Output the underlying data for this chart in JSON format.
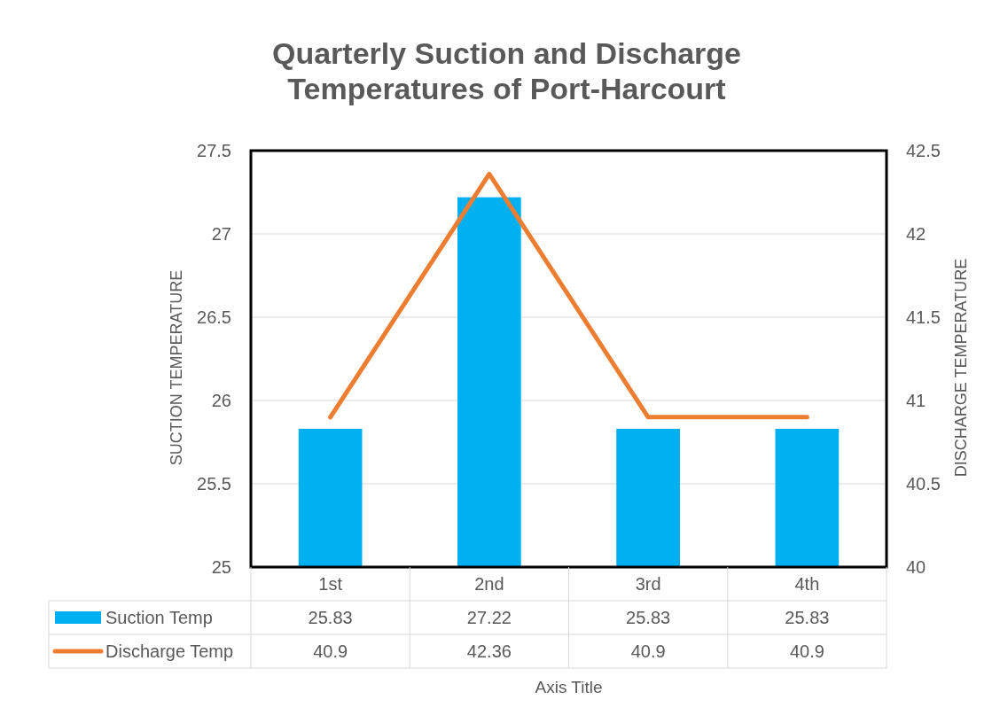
{
  "chart_data": {
    "type": "bar",
    "title": "Quarterly Suction and Discharge Temperatures of Port-Harcourt",
    "xlabel": "Axis Title",
    "ylabel": "SUCTION TEMPERATURE",
    "y2label": "DISCHARGE TEMPERATURE",
    "categories": [
      "1st",
      "2nd",
      "3rd",
      "4th"
    ],
    "series": [
      {
        "name": "Suction Temp",
        "color": "#00b0f0",
        "values": [
          25.83,
          27.22,
          25.83,
          25.83
        ]
      },
      {
        "name": "Discharge Temp",
        "type": "line",
        "axis": "y2",
        "color": "#ed7d31",
        "values": [
          40.9,
          42.36,
          40.9,
          40.9
        ]
      }
    ],
    "ylim": [
      25,
      27.5
    ],
    "yticks": [
      25,
      25.5,
      26,
      26.5,
      27,
      27.5
    ],
    "y2lim": [
      40,
      42.5
    ],
    "y2ticks": [
      40,
      40.5,
      41,
      41.5,
      42,
      42.5
    ],
    "grid": "y",
    "legend": "bottom",
    "data_labels": true,
    "marker": "none",
    "line_style": "solid"
  }
}
